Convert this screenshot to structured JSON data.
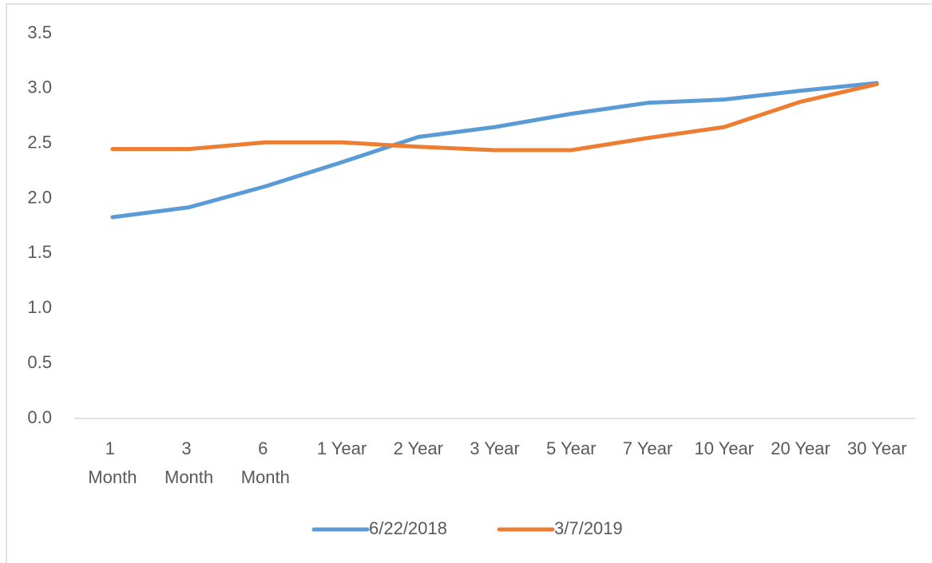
{
  "chart_data": {
    "type": "line",
    "categories": [
      "1 Month",
      "3 Month",
      "6 Month",
      "1 Year",
      "2 Year",
      "3 Year",
      "5 Year",
      "7 Year",
      "10 Year",
      "20 Year",
      "30 Year"
    ],
    "series": [
      {
        "name": "6/22/2018",
        "color": "#5b9bd5",
        "values": [
          1.83,
          1.92,
          2.11,
          2.33,
          2.56,
          2.65,
          2.77,
          2.87,
          2.9,
          2.98,
          3.05
        ]
      },
      {
        "name": "3/7/2019",
        "color": "#ed7d31",
        "values": [
          2.45,
          2.45,
          2.51,
          2.51,
          2.47,
          2.44,
          2.44,
          2.55,
          2.65,
          2.88,
          3.04
        ]
      }
    ],
    "ylim": [
      0,
      3.5
    ],
    "yticks": [
      {
        "value": 0,
        "label": "0.0"
      },
      {
        "value": 0.5,
        "label": "0.5"
      },
      {
        "value": 1,
        "label": "1.0"
      },
      {
        "value": 1.5,
        "label": "1.5"
      },
      {
        "value": 2,
        "label": "2.0"
      },
      {
        "value": 2.5,
        "label": "2.5"
      },
      {
        "value": 3,
        "label": "3.0"
      },
      {
        "value": 3.5,
        "label": "3.5"
      }
    ],
    "grid": false,
    "legend": "bottom"
  }
}
